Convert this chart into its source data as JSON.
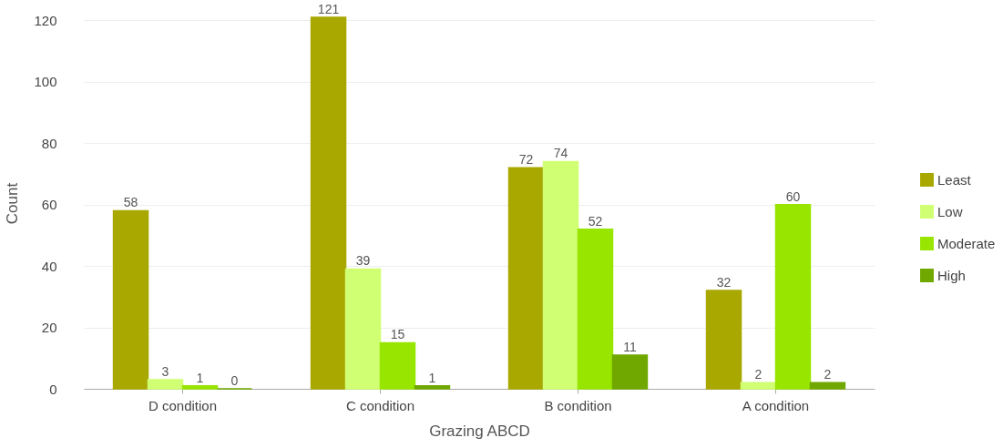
{
  "chart_data": {
    "type": "bar",
    "xlabel": "Grazing ABCD",
    "ylabel": "Count",
    "categories": [
      "D condition",
      "C condition",
      "B condition",
      "A condition"
    ],
    "series": [
      {
        "name": "Least",
        "color": "#a8a800",
        "values": [
          58,
          121,
          72,
          32
        ]
      },
      {
        "name": "Low",
        "color": "#d1ff73",
        "values": [
          3,
          39,
          74,
          2
        ]
      },
      {
        "name": "Moderate",
        "color": "#98e600",
        "values": [
          1,
          15,
          52,
          60
        ]
      },
      {
        "name": "High",
        "color": "#70a800",
        "values": [
          0,
          1,
          11,
          2
        ]
      }
    ],
    "ylim": [
      0,
      121
    ],
    "yticks": [
      0,
      20,
      40,
      60,
      80,
      100,
      120
    ],
    "grid": "y",
    "legend": "right",
    "data_labels": true
  }
}
